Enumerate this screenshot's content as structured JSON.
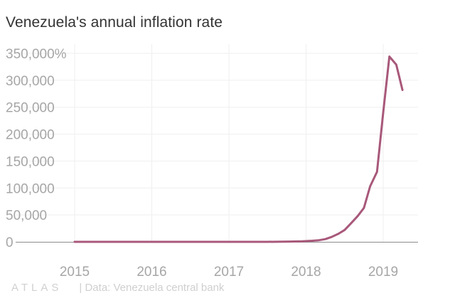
{
  "title": "Venezuela's annual inflation rate",
  "brand": "ATLAS",
  "source": "| Data: Venezuela central bank",
  "colors": {
    "line": "#a8587a",
    "grid": "#efefef",
    "baseline": "#8c8c8c",
    "tick": "#a6a6a6"
  },
  "chart_data": {
    "type": "line",
    "title": "Venezuela's annual inflation rate",
    "xlabel": "",
    "ylabel": "",
    "xlim": [
      2015.0,
      2019.45
    ],
    "ylim": [
      0,
      350000
    ],
    "y_ticks": [
      {
        "value": 350000,
        "label": "350,000%"
      },
      {
        "value": 300000,
        "label": "300,000"
      },
      {
        "value": 250000,
        "label": "250,000"
      },
      {
        "value": 200000,
        "label": "200,000"
      },
      {
        "value": 150000,
        "label": "150,000"
      },
      {
        "value": 100000,
        "label": "100,000"
      },
      {
        "value": 50000,
        "label": "50,000"
      },
      {
        "value": 0,
        "label": "0"
      }
    ],
    "x_ticks": [
      {
        "value": 2015,
        "label": "2015"
      },
      {
        "value": 2016,
        "label": "2016"
      },
      {
        "value": 2017,
        "label": "2017"
      },
      {
        "value": 2018,
        "label": "2018"
      },
      {
        "value": 2019,
        "label": "2019"
      }
    ],
    "grid": true,
    "series": [
      {
        "x": [
          2015.0,
          2015.5,
          2016.0,
          2016.5,
          2017.0,
          2017.5,
          2017.8,
          2017.95,
          2018.08,
          2018.17,
          2018.25,
          2018.33,
          2018.42,
          2018.5,
          2018.58,
          2018.67,
          2018.75,
          2018.83,
          2018.92,
          2019.0,
          2019.08,
          2019.17,
          2019.25
        ],
        "y": [
          0,
          0,
          0,
          0,
          0,
          0,
          500,
          1100,
          2000,
          3000,
          5000,
          9000,
          15000,
          22000,
          34000,
          48000,
          63000,
          103000,
          130000,
          240000,
          344000,
          329000,
          282000
        ]
      }
    ]
  }
}
